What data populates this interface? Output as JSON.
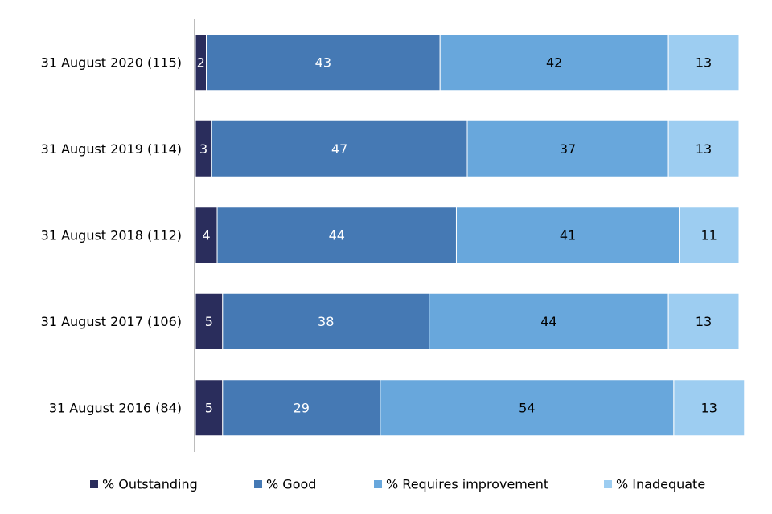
{
  "chart_data": {
    "type": "bar",
    "orientation": "horizontal",
    "stacked": true,
    "categories": [
      "31 August 2020 (115)",
      "31 August 2019 (114)",
      "31 August 2018 (112)",
      "31 August 2017 (106)",
      "31 August 2016 (84)"
    ],
    "series": [
      {
        "name": "% Outstanding",
        "color": "#2a2d5c",
        "label_color": "#ffffff",
        "values": [
          2,
          3,
          4,
          5,
          5
        ]
      },
      {
        "name": "% Good",
        "color": "#4579b4",
        "label_color": "#ffffff",
        "values": [
          43,
          47,
          44,
          38,
          29
        ]
      },
      {
        "name": "% Requires improvement",
        "color": "#68a7dc",
        "label_color": "#000000",
        "values": [
          42,
          37,
          41,
          44,
          54
        ]
      },
      {
        "name": "% Inadequate",
        "color": "#9dcdf1",
        "label_color": "#000000",
        "values": [
          13,
          13,
          11,
          13,
          13
        ]
      }
    ],
    "xlim": [
      0,
      100
    ],
    "grid": false,
    "legend_position": "bottom"
  }
}
